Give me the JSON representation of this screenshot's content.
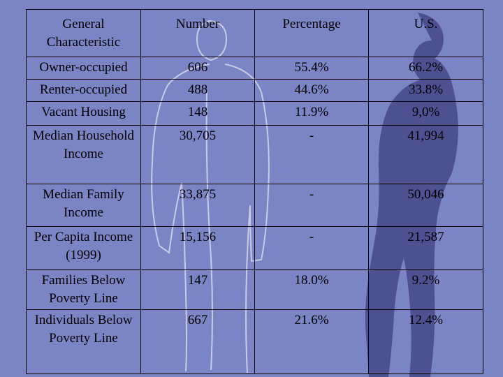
{
  "table": {
    "headers": [
      "General Characteristic",
      "Number",
      "Percentage",
      "U.S."
    ],
    "rows": [
      [
        "Owner-occupied",
        "606",
        "55.4%",
        "66.2%"
      ],
      [
        "Renter-occupied",
        "488",
        "44.6%",
        "33.8%"
      ],
      [
        "Vacant Housing",
        "148",
        "11.9%",
        "9,0%"
      ],
      [
        "Median Household Income",
        "30,705",
        "-",
        "41,994"
      ],
      [
        "Median Family Income",
        "33,875",
        "-",
        "50,046"
      ],
      [
        "Per Capita Income (1999)",
        "15,156",
        "-",
        "21,587"
      ],
      [
        "Families Below Poverty Line",
        "147",
        "18.0%",
        "9.2%"
      ],
      [
        "Individuals Below Poverty Line",
        "667",
        "21.6%",
        "12.4%"
      ]
    ]
  },
  "colors": {
    "background": "#7b84c4",
    "silhouette_outline": "#c8cbe6",
    "silhouette_fill": "#4b4d8e"
  }
}
